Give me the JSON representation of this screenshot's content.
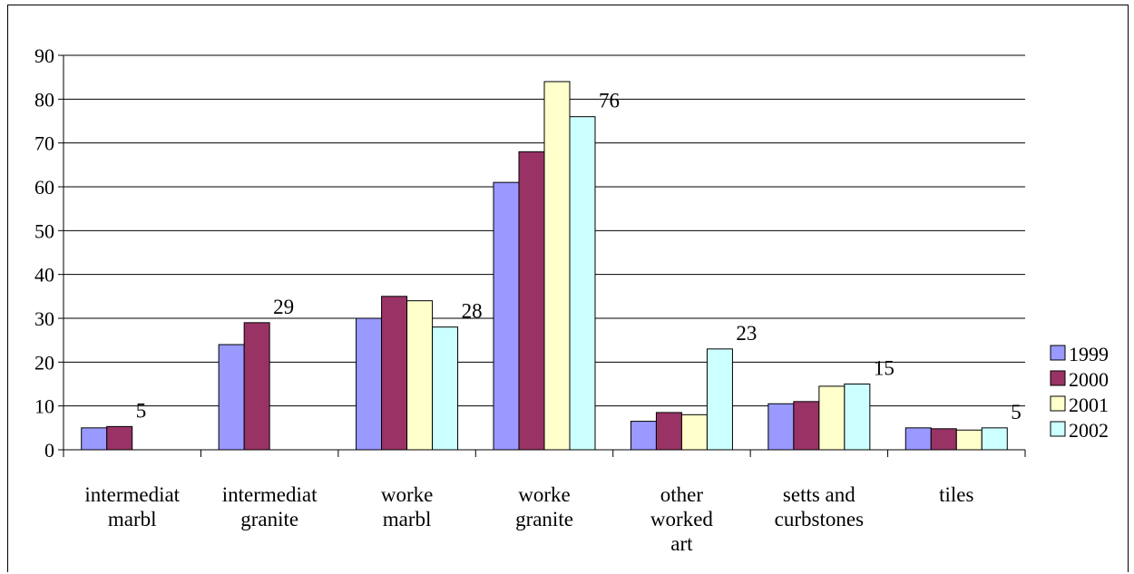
{
  "chart_data": {
    "type": "bar",
    "title": "",
    "xlabel": "",
    "ylabel": "",
    "ylim": [
      0,
      90
    ],
    "yticks": [
      "0",
      "10",
      "20",
      "30",
      "40",
      "50",
      "60",
      "70",
      "80",
      "90"
    ],
    "grid": true,
    "legend_position": "right",
    "categories": [
      [
        "intermediat",
        "marbl"
      ],
      [
        "intermediat",
        "granite"
      ],
      [
        "worke",
        "marbl"
      ],
      [
        "worke",
        "granite"
      ],
      [
        "other",
        "worked",
        "art"
      ],
      [
        "setts and",
        "curbstones"
      ],
      [
        "tiles"
      ]
    ],
    "series": [
      {
        "name": "1999",
        "color": "#9999ff",
        "values": [
          5,
          24,
          30,
          61,
          6.5,
          10.5,
          5
        ]
      },
      {
        "name": "2000",
        "color": "#993366",
        "values": [
          5.3,
          29,
          35,
          68,
          8.5,
          11,
          4.8
        ]
      },
      {
        "name": "2001",
        "color": "#ffffcc",
        "values": [
          null,
          null,
          34,
          84,
          8,
          14.5,
          4.5
        ]
      },
      {
        "name": "2002",
        "color": "#ccffff",
        "values": [
          null,
          null,
          28,
          76,
          23,
          15,
          5
        ]
      }
    ],
    "data_labels": [
      {
        "category": 0,
        "text": "5"
      },
      {
        "category": 1,
        "text": "29"
      },
      {
        "category": 2,
        "text": "28"
      },
      {
        "category": 3,
        "text": "76"
      },
      {
        "category": 4,
        "text": "23"
      },
      {
        "category": 5,
        "text": "15"
      },
      {
        "category": 6,
        "text": "5"
      }
    ]
  }
}
